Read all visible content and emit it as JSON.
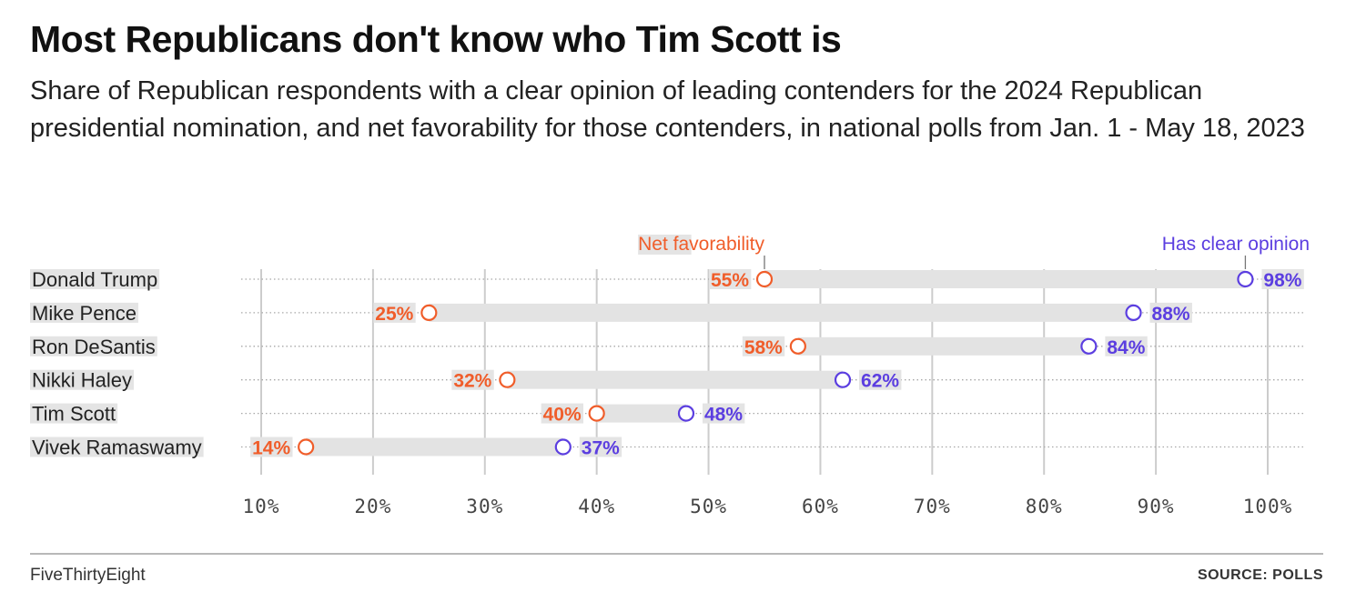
{
  "title": "Most Republicans don't know who Tim Scott is",
  "subtitle": "Share of Republican respondents with a clear opinion of leading contenders for the 2024 Republican presidential nomination, and net favorability for those contenders, in national polls from Jan. 1 - May 18, 2023",
  "footer": {
    "brand": "FiveThirtyEight",
    "source": "SOURCE: POLLS"
  },
  "colors": {
    "net_favorability": "#f05d2a",
    "clear_opinion": "#5b3ee0",
    "range_bar": "#e3e3e3",
    "grid": "#cccccc"
  },
  "chart_data": {
    "type": "dot-range",
    "categories": [
      "Donald Trump",
      "Mike Pence",
      "Ron DeSantis",
      "Nikki Haley",
      "Tim Scott",
      "Vivek Ramaswamy"
    ],
    "series": [
      {
        "name": "Net favorability",
        "values": [
          55,
          25,
          58,
          32,
          40,
          14
        ],
        "labels": [
          "55%",
          "25%",
          "58%",
          "32%",
          "40%",
          "14%"
        ]
      },
      {
        "name": "Has clear opinion",
        "values": [
          98,
          88,
          84,
          62,
          48,
          37
        ],
        "labels": [
          "98%",
          "88%",
          "84%",
          "62%",
          "48%",
          "37%"
        ]
      }
    ],
    "xlim": [
      10,
      100
    ],
    "xticks": [
      10,
      20,
      30,
      40,
      50,
      60,
      70,
      80,
      90,
      100
    ],
    "xtick_labels": [
      "10%",
      "20%",
      "30%",
      "40%",
      "50%",
      "60%",
      "70%",
      "80%",
      "90%",
      "100%"
    ],
    "grid": true,
    "legend": "series names labeled above the top row"
  }
}
